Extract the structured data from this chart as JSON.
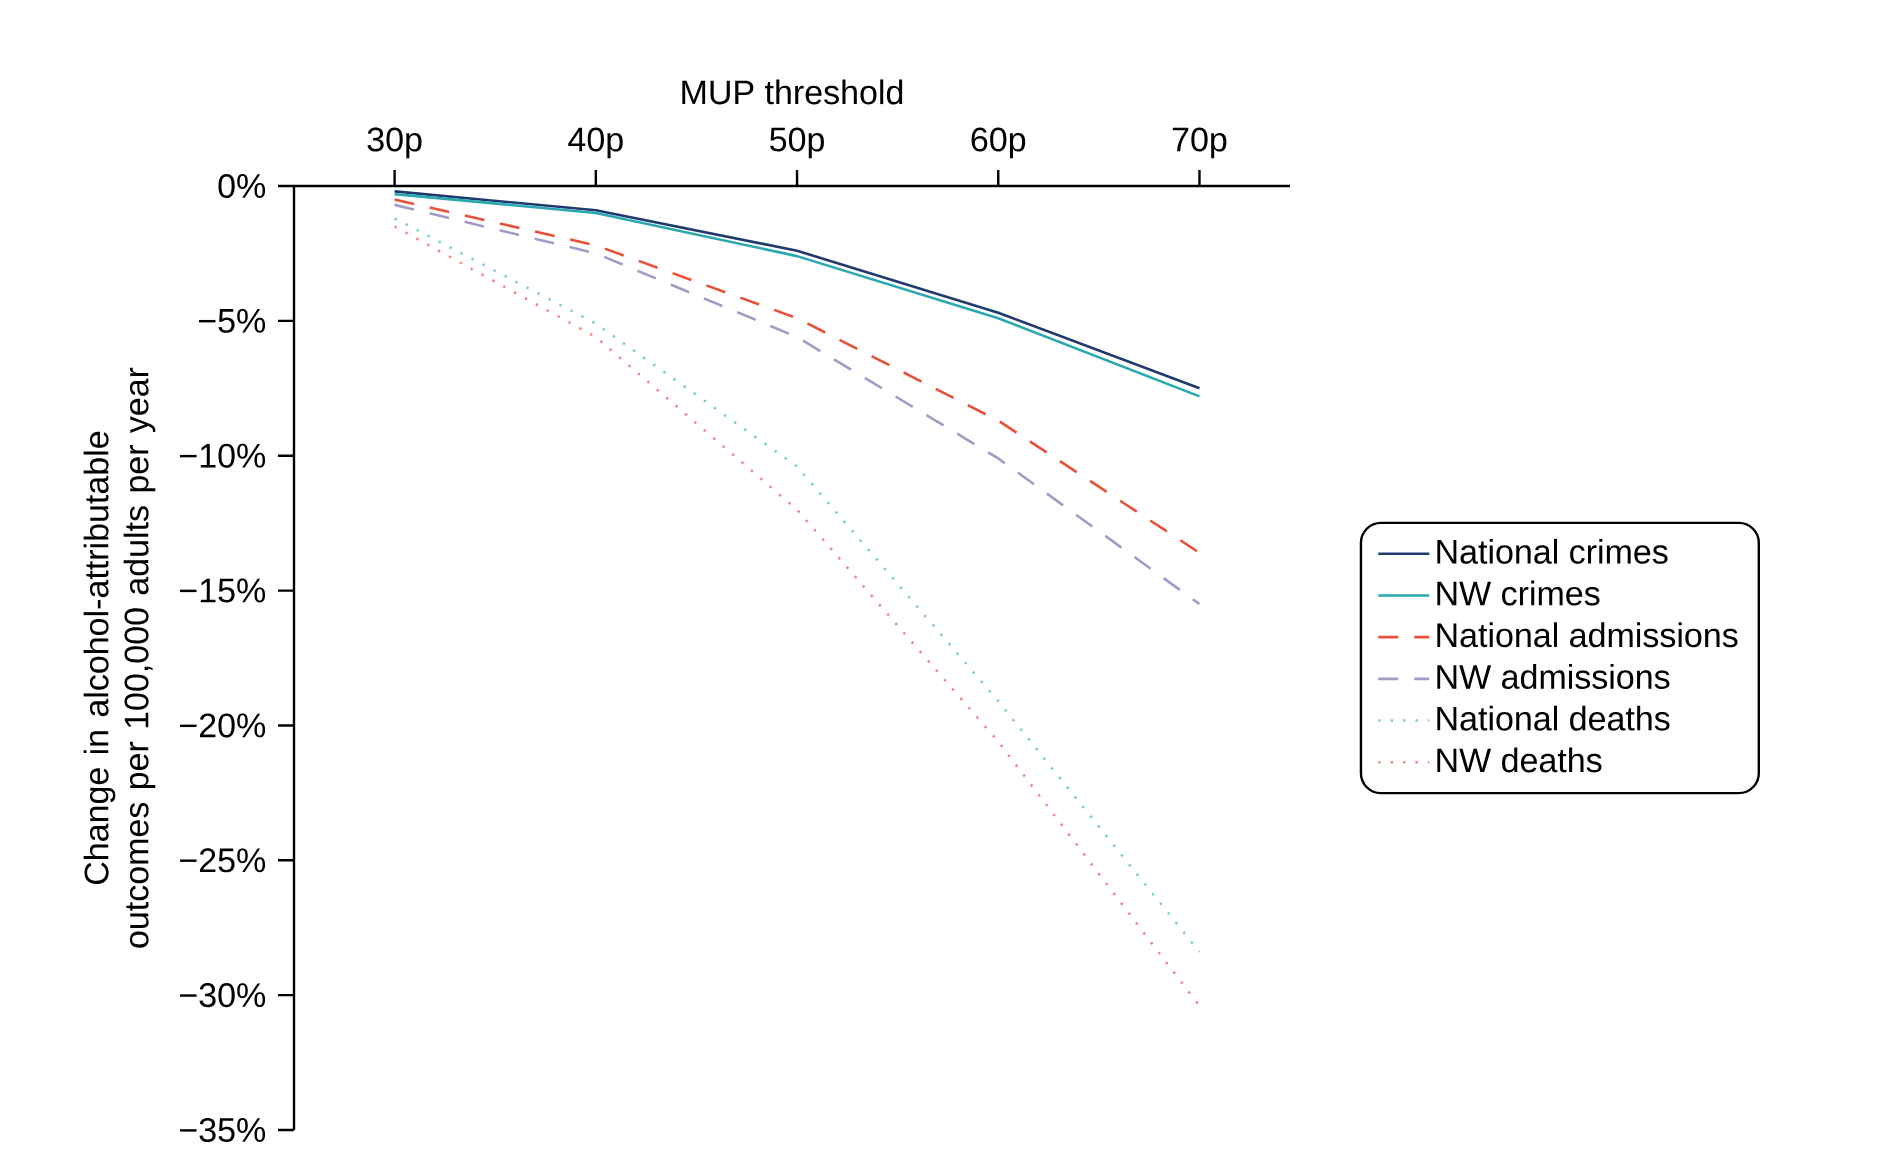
{
  "chart_data": {
    "type": "line",
    "xlabel": "MUP threshold",
    "ylabel": "Change in alcohol-attributable outcomes per 100,000 adults per year",
    "categories": [
      "30p",
      "40p",
      "50p",
      "60p",
      "70p"
    ],
    "ylim": [
      -35,
      0
    ],
    "yticks": [
      {
        "value": 0,
        "label": "0%"
      },
      {
        "value": -5,
        "label": "−5%"
      },
      {
        "value": -10,
        "label": "−10%"
      },
      {
        "value": -15,
        "label": "−15%"
      },
      {
        "value": -20,
        "label": "−20%"
      },
      {
        "value": -25,
        "label": "−25%"
      },
      {
        "value": -30,
        "label": "−30%"
      },
      {
        "value": -35,
        "label": "−35%"
      }
    ],
    "legend": "right",
    "grid": false,
    "marker": "none",
    "series": [
      {
        "name": "National crimes",
        "color": "#1f3a6e",
        "line_style": "solid",
        "values": [
          -0.2,
          -0.9,
          -2.4,
          -4.7,
          -7.5
        ]
      },
      {
        "name": "NW crimes",
        "color": "#2aa8b0",
        "line_style": "solid",
        "values": [
          -0.3,
          -1.0,
          -2.6,
          -4.9,
          -7.8
        ]
      },
      {
        "name": "National admissions",
        "color": "#e8503a",
        "line_style": "dashed",
        "values": [
          -0.5,
          -2.2,
          -4.9,
          -8.7,
          -13.6
        ]
      },
      {
        "name": "NW admissions",
        "color": "#a09cc8",
        "line_style": "dashed",
        "values": [
          -0.7,
          -2.5,
          -5.6,
          -10.1,
          -15.5
        ]
      },
      {
        "name": "National deaths",
        "color": "#7ecbd0",
        "line_style": "dotted",
        "values": [
          -1.2,
          -5.1,
          -10.4,
          -19.1,
          -28.4
        ]
      },
      {
        "name": "NW deaths",
        "color": "#f08a80",
        "line_style": "dotted",
        "values": [
          -1.5,
          -5.6,
          -12.0,
          -20.6,
          -30.4
        ]
      }
    ]
  }
}
